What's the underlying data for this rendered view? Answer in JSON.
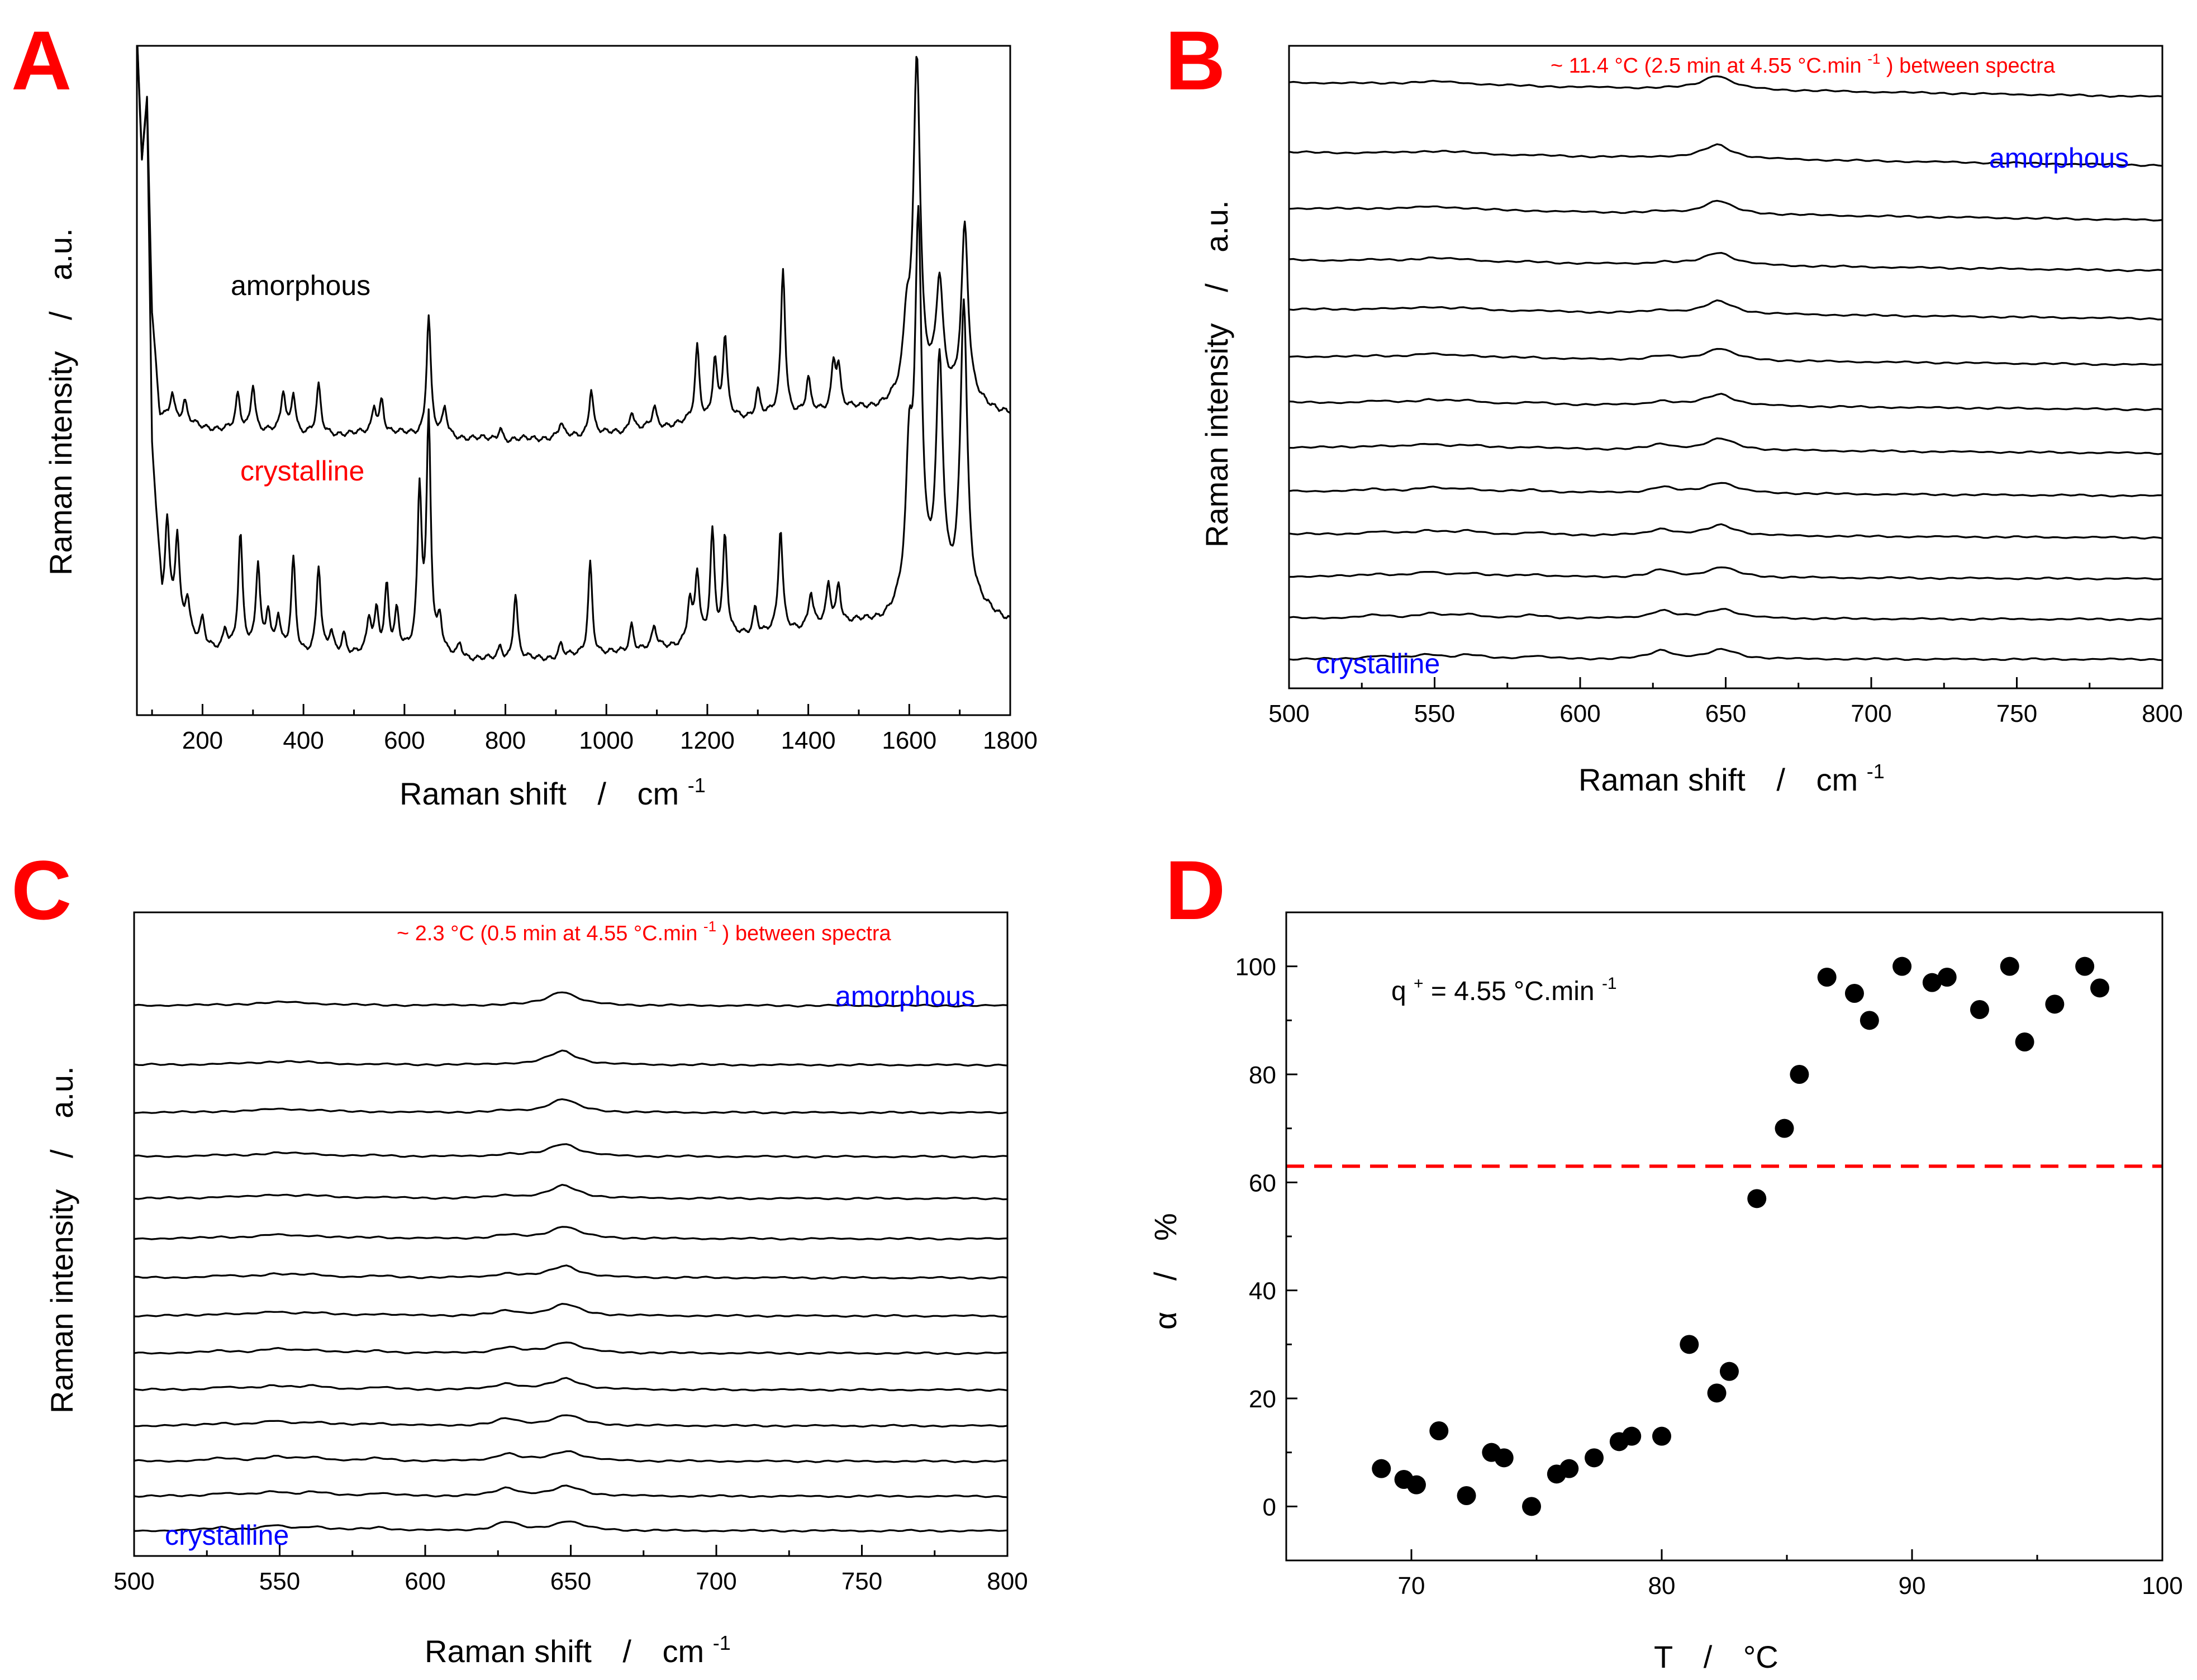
{
  "colors": {
    "letter": "#ff0000",
    "amorphous_trace": "#000000",
    "crystalline_trace": "#ff0000",
    "blue_label": "#0000ff",
    "threshold": "#ff0000"
  },
  "panels": {
    "A": {
      "letter": "A",
      "xlabel": "Raman shift",
      "slash": "/",
      "xunit": "cm",
      "xunit_sup": "-1",
      "ylabel": "Raman intensity",
      "yunit": "a.u.",
      "label_amorphous": "amorphous",
      "label_crystalline": "crystalline"
    },
    "B": {
      "letter": "B",
      "xlabel": "Raman shift",
      "slash": "/",
      "xunit": "cm",
      "xunit_sup": "-1",
      "ylabel": "Raman intensity",
      "yunit": "a.u.",
      "annot_main": "~ 11.4 °C (2.5 min at 4.55 °C.min",
      "annot_sup": "-1",
      "annot_end": ") between spectra",
      "label_amorphous": "amorphous",
      "label_crystalline": "crystalline"
    },
    "C": {
      "letter": "C",
      "xlabel": "Raman shift",
      "slash": "/",
      "xunit": "cm",
      "xunit_sup": "-1",
      "ylabel": "Raman intensity",
      "yunit": "a.u.",
      "annot_main": "~ 2.3 °C (0.5 min at 4.55 °C.min",
      "annot_sup": "-1",
      "annot_end": ") between spectra",
      "label_amorphous": "amorphous",
      "label_crystalline": "crystalline"
    },
    "D": {
      "letter": "D",
      "xlabel": "T",
      "slash": "/",
      "xunit": "°C",
      "ylabel": "α",
      "yunit": "%",
      "annot_q": "q",
      "annot_q_sup": "+",
      "annot_rest": " = 4.55 °C.min",
      "annot_rest_sup": "-1"
    }
  },
  "chart_data": [
    {
      "panel": "A",
      "type": "line",
      "title": "",
      "xlabel": "Raman shift / cm-1",
      "ylabel": "Raman intensity / a.u.",
      "xlim": [
        70,
        1800
      ],
      "xticks": [
        200,
        400,
        600,
        800,
        1000,
        1200,
        1400,
        1600,
        1800
      ],
      "ylim": [
        0,
        1
      ],
      "series": [
        {
          "name": "amorphous",
          "color": "#000000",
          "baseline_points": [
            [
              70,
              1.02
            ],
            [
              80,
              0.83
            ],
            [
              90,
              0.92
            ],
            [
              100,
              0.6
            ],
            [
              115,
              0.45
            ],
            [
              200,
              0.43
            ],
            [
              400,
              0.42
            ],
            [
              600,
              0.42
            ],
            [
              800,
              0.41
            ],
            [
              1000,
              0.42
            ],
            [
              1200,
              0.44
            ],
            [
              1400,
              0.45
            ],
            [
              1550,
              0.46
            ],
            [
              1650,
              0.48
            ],
            [
              1750,
              0.46
            ],
            [
              1800,
              0.45
            ]
          ],
          "peaks": [
            [
              140,
              0.04
            ],
            [
              165,
              0.03
            ],
            [
              270,
              0.05
            ],
            [
              300,
              0.07
            ],
            [
              360,
              0.06
            ],
            [
              380,
              0.06
            ],
            [
              430,
              0.07
            ],
            [
              540,
              0.04
            ],
            [
              555,
              0.05
            ],
            [
              648,
              0.18
            ],
            [
              680,
              0.04
            ],
            [
              790,
              0.02
            ],
            [
              910,
              0.02
            ],
            [
              970,
              0.07
            ],
            [
              1050,
              0.03
            ],
            [
              1095,
              0.03
            ],
            [
              1180,
              0.11
            ],
            [
              1215,
              0.09
            ],
            [
              1235,
              0.12
            ],
            [
              1300,
              0.04
            ],
            [
              1350,
              0.22
            ],
            [
              1400,
              0.05
            ],
            [
              1450,
              0.07
            ],
            [
              1460,
              0.06
            ],
            [
              1595,
              0.1
            ],
            [
              1615,
              0.5
            ],
            [
              1660,
              0.16
            ],
            [
              1710,
              0.26
            ]
          ]
        },
        {
          "name": "crystalline",
          "color": "#ff0000",
          "baseline_points": [
            [
              70,
              1.02
            ],
            [
              80,
              0.83
            ],
            [
              90,
              0.92
            ],
            [
              100,
              0.4
            ],
            [
              120,
              0.16
            ],
            [
              200,
              0.1
            ],
            [
              400,
              0.09
            ],
            [
              600,
              0.09
            ],
            [
              800,
              0.08
            ],
            [
              1000,
              0.09
            ],
            [
              1200,
              0.11
            ],
            [
              1400,
              0.13
            ],
            [
              1550,
              0.14
            ],
            [
              1650,
              0.17
            ],
            [
              1720,
              0.16
            ],
            [
              1800,
              0.14
            ]
          ],
          "peaks": [
            [
              130,
              0.14
            ],
            [
              150,
              0.13
            ],
            [
              170,
              0.05
            ],
            [
              200,
              0.04
            ],
            [
              245,
              0.03
            ],
            [
              275,
              0.17
            ],
            [
              310,
              0.13
            ],
            [
              330,
              0.06
            ],
            [
              350,
              0.05
            ],
            [
              380,
              0.14
            ],
            [
              430,
              0.13
            ],
            [
              455,
              0.03
            ],
            [
              480,
              0.03
            ],
            [
              530,
              0.05
            ],
            [
              545,
              0.06
            ],
            [
              565,
              0.1
            ],
            [
              585,
              0.06
            ],
            [
              630,
              0.24
            ],
            [
              648,
              0.35
            ],
            [
              670,
              0.05
            ],
            [
              710,
              0.02
            ],
            [
              790,
              0.02
            ],
            [
              820,
              0.1
            ],
            [
              910,
              0.02
            ],
            [
              968,
              0.14
            ],
            [
              1050,
              0.04
            ],
            [
              1095,
              0.03
            ],
            [
              1165,
              0.06
            ],
            [
              1180,
              0.1
            ],
            [
              1210,
              0.16
            ],
            [
              1235,
              0.15
            ],
            [
              1295,
              0.04
            ],
            [
              1345,
              0.15
            ],
            [
              1405,
              0.05
            ],
            [
              1440,
              0.06
            ],
            [
              1460,
              0.06
            ],
            [
              1600,
              0.2
            ],
            [
              1618,
              0.55
            ],
            [
              1660,
              0.34
            ],
            [
              1708,
              0.45
            ]
          ]
        }
      ]
    },
    {
      "panel": "B",
      "type": "line",
      "xlabel": "Raman shift / cm-1",
      "ylabel": "Raman intensity / a.u.",
      "xlim": [
        500,
        800
      ],
      "xticks": [
        500,
        550,
        600,
        650,
        700,
        750,
        800
      ],
      "spectra_count": 13,
      "spacing_note": "~ 11.4 °C between spectra",
      "top_spectrum": "amorphous",
      "bottom_spectrum": "crystalline"
    },
    {
      "panel": "C",
      "type": "line",
      "xlabel": "Raman shift / cm-1",
      "ylabel": "Raman intensity / a.u.",
      "xlim": [
        500,
        800
      ],
      "xticks": [
        500,
        550,
        600,
        650,
        700,
        750,
        800
      ],
      "spectra_count": 14,
      "spacing_note": "~ 2.3 °C between spectra",
      "top_spectrum": "amorphous",
      "bottom_spectrum": "crystalline"
    },
    {
      "panel": "D",
      "type": "scatter",
      "xlabel": "T / °C",
      "ylabel": "α / %",
      "xlim": [
        65,
        100
      ],
      "ylim": [
        -10,
        110
      ],
      "xticks": [
        70,
        80,
        90,
        100
      ],
      "yticks": [
        0,
        20,
        40,
        60,
        80,
        100
      ],
      "threshold_y": 63,
      "x": [
        68.8,
        69.7,
        70.2,
        71.1,
        72.2,
        73.2,
        73.7,
        74.8,
        75.8,
        76.3,
        77.3,
        78.3,
        78.8,
        80.0,
        81.1,
        82.2,
        82.7,
        83.8,
        84.9,
        85.5,
        86.6,
        87.7,
        88.3,
        89.6,
        90.8,
        91.4,
        92.7,
        93.9,
        94.5,
        95.7,
        96.9,
        97.5
      ],
      "y": [
        7,
        5,
        4,
        14,
        2,
        10,
        9,
        0,
        6,
        7,
        9,
        12,
        13,
        13,
        30,
        21,
        25,
        57,
        70,
        80,
        98,
        95,
        90,
        100,
        97,
        98,
        92,
        100,
        86,
        93,
        100,
        96
      ]
    }
  ]
}
